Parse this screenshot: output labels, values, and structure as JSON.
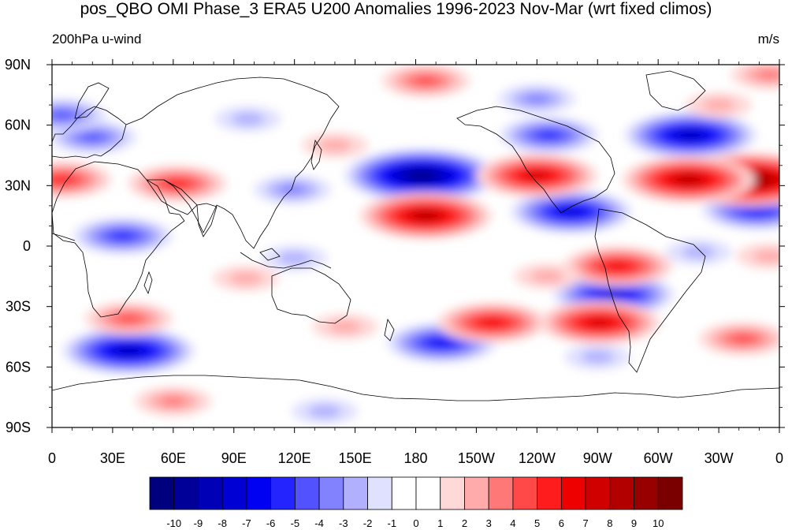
{
  "title": "pos_QBO OMI Phase_3 ERA5 U200 Anomalies 1996-2023 Nov-Mar (wrt fixed climos)",
  "left_string": "200hPa u-wind",
  "right_string": "m/s",
  "chart_data": {
    "type": "heatmap",
    "variable": "200hPa u-wind anomaly",
    "units": "m/s",
    "xlim": [
      0,
      360
    ],
    "ylim": [
      -90,
      90
    ],
    "x_ticks": [
      {
        "lon": 0,
        "label": "0"
      },
      {
        "lon": 30,
        "label": "30E"
      },
      {
        "lon": 60,
        "label": "60E"
      },
      {
        "lon": 90,
        "label": "90E"
      },
      {
        "lon": 120,
        "label": "120E"
      },
      {
        "lon": 150,
        "label": "150E"
      },
      {
        "lon": 180,
        "label": "180"
      },
      {
        "lon": 210,
        "label": "150W"
      },
      {
        "lon": 240,
        "label": "120W"
      },
      {
        "lon": 270,
        "label": "90W"
      },
      {
        "lon": 300,
        "label": "60W"
      },
      {
        "lon": 330,
        "label": "30W"
      },
      {
        "lon": 360,
        "label": "0"
      }
    ],
    "y_ticks": [
      {
        "lat": 90,
        "label": "90N"
      },
      {
        "lat": 60,
        "label": "60N"
      },
      {
        "lat": 30,
        "label": "30N"
      },
      {
        "lat": 0,
        "label": "0"
      },
      {
        "lat": -30,
        "label": "30S"
      },
      {
        "lat": -60,
        "label": "60S"
      },
      {
        "lat": -90,
        "label": "90S"
      }
    ],
    "colorbar": {
      "labels": [
        "-10",
        "-9",
        "-8",
        "-7",
        "-6",
        "-5",
        "-4",
        "-3",
        "-2",
        "-1",
        "0",
        "1",
        "2",
        "3",
        "4",
        "5",
        "6",
        "7",
        "8",
        "9",
        "10"
      ],
      "colors": [
        "#00007f",
        "#000098",
        "#0000b6",
        "#0000d4",
        "#0000f2",
        "#2424ff",
        "#5252ff",
        "#8282ff",
        "#b0b0ff",
        "#e0e0ff",
        "#ffffff",
        "#ffffff",
        "#ffd8d8",
        "#ffabab",
        "#ff7878",
        "#ff4848",
        "#ff1c1c",
        "#ee0000",
        "#d00000",
        "#b20000",
        "#980000",
        "#7a0000"
      ]
    },
    "anomaly_centers": [
      {
        "lon": 183,
        "lat": 35,
        "value": -10
      },
      {
        "lon": 316,
        "lat": 55,
        "value": -8
      },
      {
        "lon": 38,
        "lat": -52,
        "value": -8
      },
      {
        "lon": 257,
        "lat": 17,
        "value": -7
      },
      {
        "lon": 278,
        "lat": -24,
        "value": -7
      },
      {
        "lon": 349,
        "lat": 18,
        "value": -6
      },
      {
        "lon": 193,
        "lat": -48,
        "value": -6
      },
      {
        "lon": 246,
        "lat": 55,
        "value": -5
      },
      {
        "lon": 35,
        "lat": 5,
        "value": -5
      },
      {
        "lon": 20,
        "lat": 54,
        "value": -4
      },
      {
        "lon": 5,
        "lat": 65,
        "value": -4
      },
      {
        "lon": 119,
        "lat": 28,
        "value": -3
      },
      {
        "lon": 240,
        "lat": 73,
        "value": -3
      },
      {
        "lon": 97,
        "lat": 63,
        "value": -2
      },
      {
        "lon": 120,
        "lat": -6,
        "value": -2
      },
      {
        "lon": 320,
        "lat": -3,
        "value": -2
      },
      {
        "lon": 270,
        "lat": -55,
        "value": -2
      },
      {
        "lon": 135,
        "lat": -82,
        "value": -2
      },
      {
        "lon": 345,
        "lat": 33,
        "value": 10
      },
      {
        "lon": 315,
        "lat": 33,
        "value": 8
      },
      {
        "lon": 185,
        "lat": 15,
        "value": 8
      },
      {
        "lon": 240,
        "lat": 35,
        "value": 7
      },
      {
        "lon": 271,
        "lat": -38,
        "value": 7
      },
      {
        "lon": 280,
        "lat": -10,
        "value": 6
      },
      {
        "lon": 218,
        "lat": -38,
        "value": 6
      },
      {
        "lon": 62,
        "lat": 31,
        "value": 5
      },
      {
        "lon": 5,
        "lat": 33,
        "value": 5
      },
      {
        "lon": 38,
        "lat": -36,
        "value": 4
      },
      {
        "lon": 342,
        "lat": -46,
        "value": 4
      },
      {
        "lon": 185,
        "lat": 82,
        "value": 4
      },
      {
        "lon": 60,
        "lat": -77,
        "value": 3
      },
      {
        "lon": 355,
        "lat": 85,
        "value": 3
      },
      {
        "lon": 96,
        "lat": -16,
        "value": 2
      },
      {
        "lon": 140,
        "lat": 50,
        "value": 2
      },
      {
        "lon": 330,
        "lat": 70,
        "value": 2
      },
      {
        "lon": 145,
        "lat": -40,
        "value": 2
      },
      {
        "lon": 245,
        "lat": -15,
        "value": 2
      },
      {
        "lon": 355,
        "lat": -5,
        "value": 2
      }
    ]
  }
}
